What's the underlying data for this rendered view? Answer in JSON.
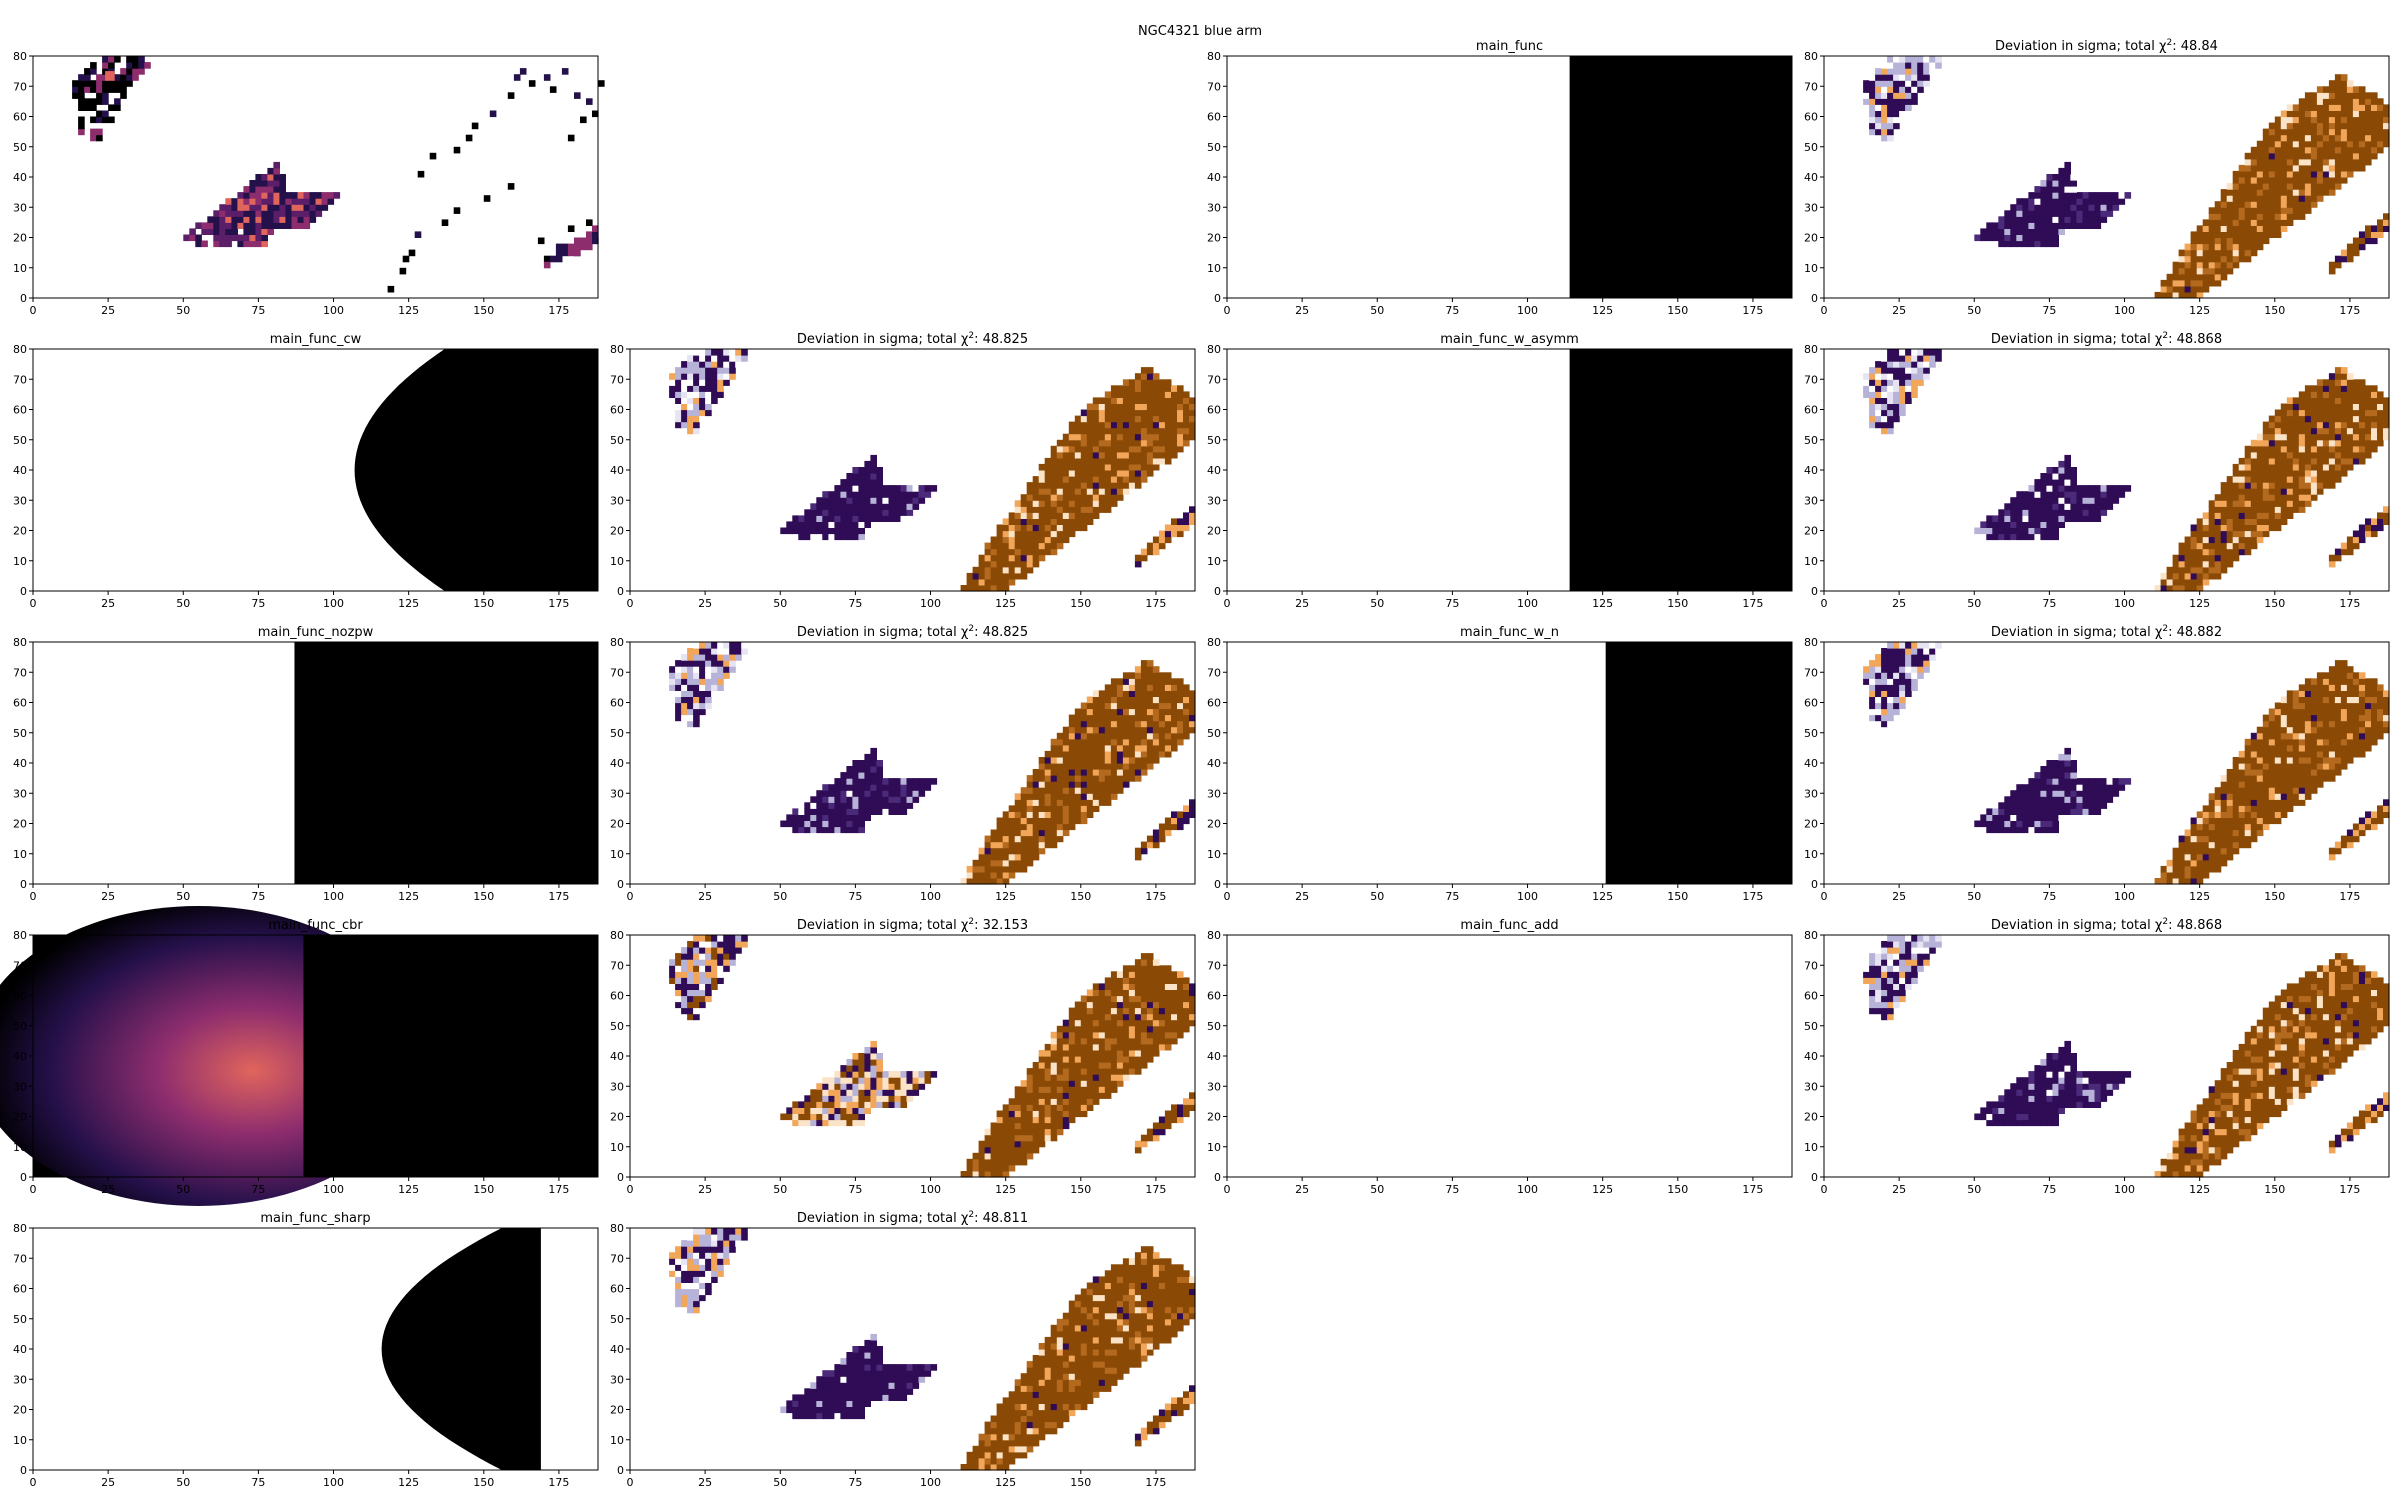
{
  "suptitle": "NGC4321 blue arm",
  "colors": {
    "model_fill": "#000000",
    "deviation_pos": "#8a4a06",
    "deviation_pos_light": "#f2a65a",
    "deviation_neg": "#2f0c55",
    "deviation_neg_light": "#b7b2d8",
    "flux_dark": "#24104a",
    "flux_mid": "#8e2d6e",
    "flux_bright": "#e0655c"
  },
  "chart_data": [
    {
      "type": "heatmap",
      "kind": "data",
      "title": "",
      "xlim": [
        0,
        188
      ],
      "ylim": [
        0,
        80
      ],
      "xticks": [
        0,
        25,
        50,
        75,
        100,
        125,
        150,
        175
      ],
      "yticks": [
        0,
        10,
        20,
        30,
        40,
        50,
        60,
        70,
        80
      ]
    },
    {
      "type": "heatmap",
      "kind": "empty",
      "title": ""
    },
    {
      "type": "heatmap",
      "kind": "model",
      "title": "main_func",
      "shape": "vertical",
      "edge_x": 114,
      "xlim": [
        0,
        188
      ],
      "ylim": [
        0,
        80
      ],
      "xticks": [
        0,
        25,
        50,
        75,
        100,
        125,
        150,
        175
      ],
      "yticks": [
        0,
        10,
        20,
        30,
        40,
        50,
        60,
        70,
        80
      ]
    },
    {
      "type": "heatmap",
      "kind": "deviation",
      "title": "Deviation in sigma; total χ²: 48.84",
      "chi2": 48.84,
      "xlim": [
        0,
        188
      ],
      "ylim": [
        0,
        80
      ],
      "xticks": [
        0,
        25,
        50,
        75,
        100,
        125,
        150,
        175
      ],
      "yticks": [
        0,
        10,
        20,
        30,
        40,
        50,
        60,
        70,
        80
      ]
    },
    {
      "type": "heatmap",
      "kind": "model",
      "title": "main_func_cw",
      "shape": "parabola",
      "vertex_x": 107,
      "top_x": 137,
      "xlim": [
        0,
        188
      ],
      "ylim": [
        0,
        80
      ],
      "xticks": [
        0,
        25,
        50,
        75,
        100,
        125,
        150,
        175
      ],
      "yticks": [
        0,
        10,
        20,
        30,
        40,
        50,
        60,
        70,
        80
      ]
    },
    {
      "type": "heatmap",
      "kind": "deviation",
      "title": "Deviation in sigma; total χ²: 48.825",
      "chi2": 48.825,
      "xlim": [
        0,
        188
      ],
      "ylim": [
        0,
        80
      ],
      "xticks": [
        0,
        25,
        50,
        75,
        100,
        125,
        150,
        175
      ],
      "yticks": [
        0,
        10,
        20,
        30,
        40,
        50,
        60,
        70,
        80
      ]
    },
    {
      "type": "heatmap",
      "kind": "model",
      "title": "main_func_w_asymm",
      "shape": "vertical",
      "edge_x": 114,
      "xlim": [
        0,
        188
      ],
      "ylim": [
        0,
        80
      ],
      "xticks": [
        0,
        25,
        50,
        75,
        100,
        125,
        150,
        175
      ],
      "yticks": [
        0,
        10,
        20,
        30,
        40,
        50,
        60,
        70,
        80
      ]
    },
    {
      "type": "heatmap",
      "kind": "deviation",
      "title": "Deviation in sigma; total χ²: 48.868",
      "chi2": 48.868,
      "xlim": [
        0,
        188
      ],
      "ylim": [
        0,
        80
      ],
      "xticks": [
        0,
        25,
        50,
        75,
        100,
        125,
        150,
        175
      ],
      "yticks": [
        0,
        10,
        20,
        30,
        40,
        50,
        60,
        70,
        80
      ]
    },
    {
      "type": "heatmap",
      "kind": "model",
      "title": "main_func_nozpw",
      "shape": "vertical",
      "edge_x": 87,
      "xlim": [
        0,
        188
      ],
      "ylim": [
        0,
        80
      ],
      "xticks": [
        0,
        25,
        50,
        75,
        100,
        125,
        150,
        175
      ],
      "yticks": [
        0,
        10,
        20,
        30,
        40,
        50,
        60,
        70,
        80
      ]
    },
    {
      "type": "heatmap",
      "kind": "deviation",
      "title": "Deviation in sigma; total χ²: 48.825",
      "chi2": 48.825,
      "xlim": [
        0,
        188
      ],
      "ylim": [
        0,
        80
      ],
      "xticks": [
        0,
        25,
        50,
        75,
        100,
        125,
        150,
        175
      ],
      "yticks": [
        0,
        10,
        20,
        30,
        40,
        50,
        60,
        70,
        80
      ]
    },
    {
      "type": "heatmap",
      "kind": "model",
      "title": "main_func_w_n",
      "shape": "vertical",
      "edge_x": 126,
      "xlim": [
        0,
        188
      ],
      "ylim": [
        0,
        80
      ],
      "xticks": [
        0,
        25,
        50,
        75,
        100,
        125,
        150,
        175
      ],
      "yticks": [
        0,
        10,
        20,
        30,
        40,
        50,
        60,
        70,
        80
      ]
    },
    {
      "type": "heatmap",
      "kind": "deviation",
      "title": "Deviation in sigma; total χ²: 48.882",
      "chi2": 48.882,
      "xlim": [
        0,
        188
      ],
      "ylim": [
        0,
        80
      ],
      "xticks": [
        0,
        25,
        50,
        75,
        100,
        125,
        150,
        175
      ],
      "yticks": [
        0,
        10,
        20,
        30,
        40,
        50,
        60,
        70,
        80
      ]
    },
    {
      "type": "heatmap",
      "kind": "model",
      "title": "main_func_cbr",
      "shape": "glow",
      "center_x": 70,
      "center_y": 40,
      "xlim": [
        0,
        188
      ],
      "ylim": [
        0,
        80
      ],
      "xticks": [
        0,
        25,
        50,
        75,
        100,
        125,
        150,
        175
      ],
      "yticks": [
        0,
        10,
        20,
        30,
        40,
        50,
        60,
        70,
        80
      ]
    },
    {
      "type": "heatmap",
      "kind": "deviation",
      "title": "Deviation in sigma; total χ²: 32.153",
      "chi2": 32.153,
      "variant": "mixed",
      "xlim": [
        0,
        188
      ],
      "ylim": [
        0,
        80
      ],
      "xticks": [
        0,
        25,
        50,
        75,
        100,
        125,
        150,
        175
      ],
      "yticks": [
        0,
        10,
        20,
        30,
        40,
        50,
        60,
        70,
        80
      ]
    },
    {
      "type": "heatmap",
      "kind": "model",
      "title": "main_func_add",
      "shape": "none",
      "xlim": [
        0,
        188
      ],
      "ylim": [
        0,
        80
      ],
      "xticks": [
        0,
        25,
        50,
        75,
        100,
        125,
        150,
        175
      ],
      "yticks": [
        0,
        10,
        20,
        30,
        40,
        50,
        60,
        70,
        80
      ]
    },
    {
      "type": "heatmap",
      "kind": "deviation",
      "title": "Deviation in sigma; total χ²: 48.868",
      "chi2": 48.868,
      "xlim": [
        0,
        188
      ],
      "ylim": [
        0,
        80
      ],
      "xticks": [
        0,
        25,
        50,
        75,
        100,
        125,
        150,
        175
      ],
      "yticks": [
        0,
        10,
        20,
        30,
        40,
        50,
        60,
        70,
        80
      ]
    },
    {
      "type": "heatmap",
      "kind": "model",
      "title": "main_func_sharp",
      "shape": "parabola_cut",
      "vertex_x": 116,
      "top_x": 156,
      "cut_x": 169,
      "xlim": [
        0,
        188
      ],
      "ylim": [
        0,
        80
      ],
      "xticks": [
        0,
        25,
        50,
        75,
        100,
        125,
        150,
        175
      ],
      "yticks": [
        0,
        10,
        20,
        30,
        40,
        50,
        60,
        70,
        80
      ]
    },
    {
      "type": "heatmap",
      "kind": "deviation",
      "title": "Deviation in sigma; total χ²: 48.811",
      "chi2": 48.811,
      "xlim": [
        0,
        188
      ],
      "ylim": [
        0,
        80
      ],
      "xticks": [
        0,
        25,
        50,
        75,
        100,
        125,
        150,
        175
      ],
      "yticks": [
        0,
        10,
        20,
        30,
        40,
        50,
        60,
        70,
        80
      ]
    },
    {
      "type": "heatmap",
      "kind": "empty",
      "title": ""
    },
    {
      "type": "heatmap",
      "kind": "empty",
      "title": ""
    }
  ]
}
